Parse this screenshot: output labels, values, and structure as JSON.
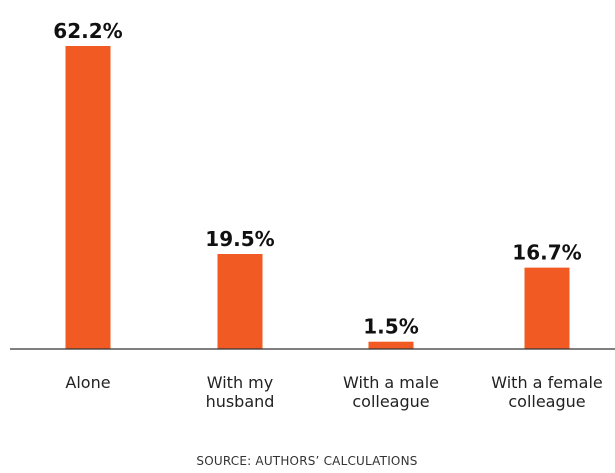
{
  "chart_data": {
    "type": "bar",
    "categories": [
      [
        "Alone"
      ],
      [
        "With my",
        "husband"
      ],
      [
        "With a male",
        "colleague"
      ],
      [
        "With a female",
        "colleague"
      ]
    ],
    "values": [
      62.2,
      19.5,
      1.5,
      16.7
    ],
    "value_labels": [
      "62.2%",
      "19.5%",
      "1.5%",
      "16.7%"
    ],
    "value_suffix": "%",
    "title": "",
    "xlabel": "",
    "ylabel": "",
    "ylim": [
      0,
      62.2
    ],
    "grid": false,
    "legend": "none",
    "bar_color": "#f15a22",
    "axis_color": "#333333",
    "source": "SOURCE: AUTHORS’ CALCULATIONS"
  }
}
